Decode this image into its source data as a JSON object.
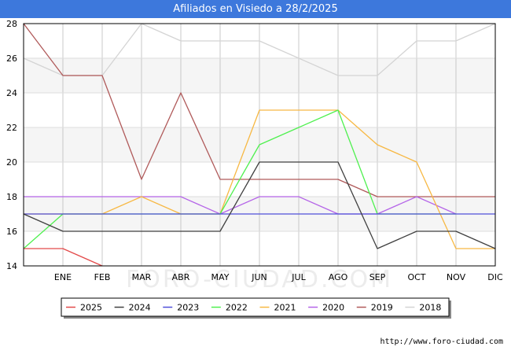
{
  "header": {
    "title": "Afiliados en Visiedo a 28/2/2025"
  },
  "source": "http://www.foro-ciudad.com",
  "watermark": "FORO-CIUDAD.COM",
  "chart_data": {
    "type": "line",
    "title": "Afiliados en Visiedo a 28/2/2025",
    "xlabel": "",
    "ylabel": "",
    "categories": [
      "",
      "ENE",
      "FEB",
      "MAR",
      "ABR",
      "MAY",
      "JUN",
      "JUL",
      "AGO",
      "SEP",
      "OCT",
      "NOV",
      "DIC"
    ],
    "ylim": [
      14,
      28
    ],
    "yticks": [
      14,
      16,
      18,
      20,
      22,
      24,
      26,
      28
    ],
    "grid": true,
    "legend_position": "bottom",
    "series": [
      {
        "name": "2025",
        "color": "#e34a4a",
        "values": [
          15,
          15,
          14,
          null,
          null,
          null,
          null,
          null,
          null,
          null,
          null,
          null,
          null
        ]
      },
      {
        "name": "2024",
        "color": "#404040",
        "values": [
          17,
          16,
          16,
          16,
          16,
          16,
          20,
          20,
          20,
          15,
          16,
          16,
          15
        ]
      },
      {
        "name": "2023",
        "color": "#4f4fd9",
        "values": [
          17,
          17,
          17,
          17,
          17,
          17,
          17,
          17,
          17,
          17,
          17,
          17,
          17
        ]
      },
      {
        "name": "2022",
        "color": "#4ff04f",
        "values": [
          15,
          17,
          17,
          17,
          17,
          17,
          21,
          22,
          23,
          17,
          17,
          17,
          null
        ]
      },
      {
        "name": "2021",
        "color": "#f7b843",
        "values": [
          17,
          17,
          17,
          18,
          17,
          17,
          23,
          23,
          23,
          21,
          20,
          15,
          15
        ]
      },
      {
        "name": "2020",
        "color": "#b565e8",
        "values": [
          18,
          18,
          18,
          18,
          18,
          17,
          18,
          18,
          17,
          17,
          18,
          17,
          null
        ]
      },
      {
        "name": "2019",
        "color": "#b05a5a",
        "values": [
          28,
          25,
          25,
          19,
          24,
          19,
          19,
          19,
          19,
          18,
          18,
          18,
          18
        ]
      },
      {
        "name": "2018",
        "color": "#d4d4d4",
        "values": [
          26,
          25,
          25,
          28,
          27,
          27,
          27,
          26,
          25,
          25,
          27,
          27,
          28
        ]
      }
    ]
  }
}
